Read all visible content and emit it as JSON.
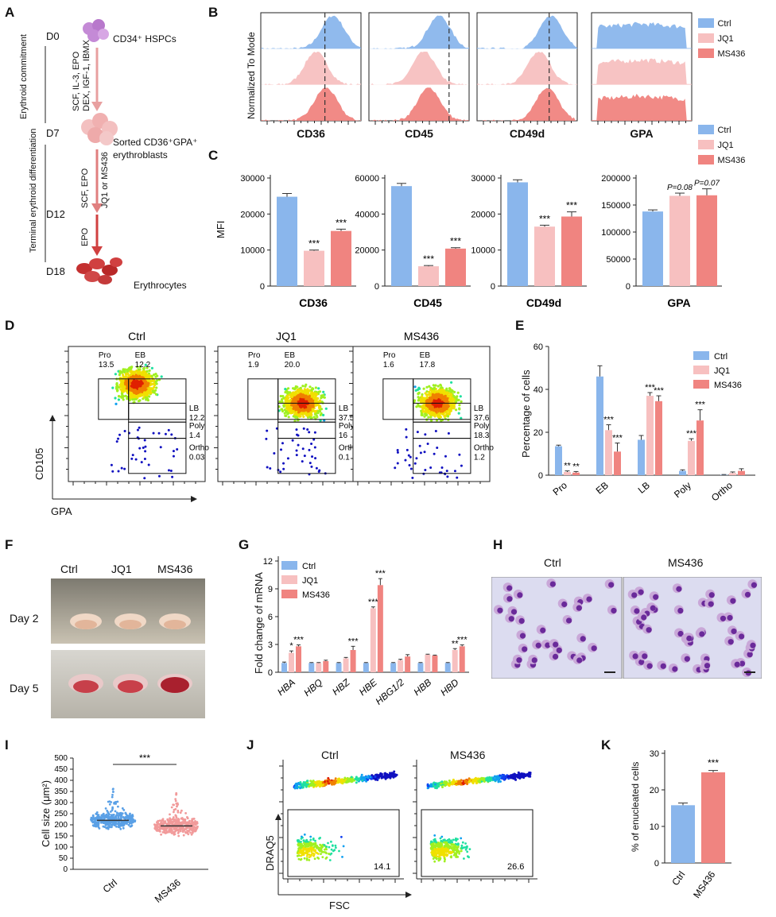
{
  "panels": {
    "A": "A",
    "B": "B",
    "C": "C",
    "D": "D",
    "E": "E",
    "F": "F",
    "G": "G",
    "H": "H",
    "I": "I",
    "J": "J",
    "K": "K"
  },
  "colors": {
    "ctrl": "#8ab6ec",
    "jq1": "#f7c0c0",
    "ms436": "#f08480",
    "arrow": "#e07f7f",
    "cell": "#d04040",
    "hspc": "#c48ad6"
  },
  "legend3": {
    "ctrl": "Ctrl",
    "jq1": "JQ1",
    "ms436": "MS436"
  },
  "panelA": {
    "days": [
      "D0",
      "D7",
      "D12",
      "D18"
    ],
    "stage1": "Erythroid commitment",
    "stage2": "Terminal erythroid differentiation",
    "cyt1": "SCF, IL-3, EPO",
    "cyt2": "DEX, IGF-1, IBMX",
    "cyt3": "SCF, EPO",
    "cyt4": "JQ1 or MS436",
    "cyt5": "EPO",
    "cell1": "CD34⁺ HSPCs",
    "cell2a": "Sorted CD36⁺GPA⁺",
    "cell2b": "erythroblasts",
    "cell3": "Erythrocytes"
  },
  "panelB": {
    "ylabel": "Normalized To Mode",
    "markers": [
      "CD36",
      "CD45",
      "CD49d",
      "GPA"
    ]
  },
  "panelC": {
    "ylabel": "MFI",
    "charts": [
      {
        "title": "CD36",
        "yticks": [
          "0",
          "10000",
          "20000",
          "30000"
        ],
        "ymax": 30000,
        "values": [
          24800,
          9800,
          15300
        ],
        "errs": [
          900,
          200,
          500
        ],
        "sig": [
          "",
          "***",
          "***"
        ]
      },
      {
        "title": "CD45",
        "yticks": [
          "0",
          "20000",
          "40000",
          "60000"
        ],
        "ymax": 60000,
        "values": [
          55500,
          11000,
          20800
        ],
        "errs": [
          1500,
          400,
          500
        ],
        "sig": [
          "",
          "***",
          "***"
        ]
      },
      {
        "title": "CD49d",
        "yticks": [
          "0",
          "10000",
          "20000",
          "30000"
        ],
        "ymax": 30000,
        "values": [
          28800,
          16500,
          19300
        ],
        "errs": [
          700,
          400,
          1300
        ],
        "sig": [
          "",
          "***",
          "***"
        ]
      },
      {
        "title": "GPA",
        "yticks": [
          "0",
          "50000",
          "100000",
          "150000",
          "200000"
        ],
        "ymax": 200000,
        "values": [
          138000,
          167000,
          168000
        ],
        "errs": [
          3000,
          5000,
          12000
        ],
        "sig": [
          "",
          "P=0.08",
          "P=0.07"
        ]
      }
    ]
  },
  "panelD": {
    "xlabel": "GPA",
    "ylabel": "CD105",
    "plots": [
      {
        "title": "Ctrl",
        "pro": "Pro",
        "pro_v": "13.5",
        "eb": "EB",
        "eb_v": "12.2",
        "lb_v": "12.2",
        "poly_v": "1.4",
        "ortho_v": "0.03"
      },
      {
        "title": "JQ1",
        "pro": "Pro",
        "pro_v": "1.9",
        "eb": "EB",
        "eb_v": "20.0",
        "lb_v": "37.5",
        "poly_v": "16",
        "ortho_v": "0.1"
      },
      {
        "title": "MS436",
        "pro": "Pro",
        "pro_v": "1.6",
        "eb": "EB",
        "eb_v": "17.8",
        "lb_v": "37.6",
        "poly_v": "18.3",
        "ortho_v": "1.2"
      }
    ],
    "lb": "LB",
    "poly": "Poly",
    "ortho": "Ortho"
  },
  "panelE": {
    "ylabel": "Percentage of cells",
    "yticks": [
      "0",
      "20",
      "40",
      "60"
    ],
    "ymax": 60,
    "categories": [
      "Pro",
      "EB",
      "LB",
      "Poly",
      "Ortho"
    ],
    "series": [
      {
        "name": "Ctrl",
        "values": [
          13.5,
          46,
          16.5,
          2,
          0.2
        ],
        "errs": [
          0.5,
          5,
          2,
          0.5,
          0.1
        ],
        "sig": [
          "",
          "",
          "",
          "",
          ""
        ]
      },
      {
        "name": "JQ1",
        "values": [
          1.5,
          21,
          37,
          16,
          1
        ],
        "errs": [
          0.5,
          2.5,
          1.5,
          1,
          0.5
        ],
        "sig": [
          "**",
          "***",
          "***",
          "***",
          ""
        ]
      },
      {
        "name": "MS436",
        "values": [
          1.2,
          11,
          34.5,
          25.5,
          2
        ],
        "errs": [
          0.5,
          4,
          2.5,
          5,
          1
        ],
        "sig": [
          "**",
          "***",
          "***",
          "***",
          ""
        ]
      }
    ]
  },
  "panelF": {
    "cols": [
      "Ctrl",
      "JQ1",
      "MS436"
    ],
    "rows": [
      "Day 2",
      "Day 5"
    ]
  },
  "panelG": {
    "ylabel": "Fold change of mRNA",
    "yticks": [
      "0",
      "3",
      "6",
      "9",
      "12"
    ],
    "ymax": 12,
    "categories": [
      "HBA",
      "HBQ",
      "HBZ",
      "HBE",
      "HBG1/2",
      "HBB",
      "HBD"
    ],
    "series": [
      {
        "name": "Ctrl",
        "values": [
          1,
          1,
          1,
          1,
          1,
          1,
          1
        ],
        "errs": [
          0.1,
          0.05,
          0.05,
          0.05,
          0.05,
          0.05,
          0.05
        ],
        "sig": [
          "",
          "",
          "",
          "",
          "",
          "",
          ""
        ]
      },
      {
        "name": "JQ1",
        "values": [
          2.1,
          1,
          1.5,
          6.9,
          1.3,
          1.9,
          2.4
        ],
        "errs": [
          0.2,
          0.05,
          0.1,
          0.15,
          0.1,
          0.05,
          0.15
        ],
        "sig": [
          "*",
          "",
          "",
          "***",
          "",
          "",
          "**"
        ]
      },
      {
        "name": "MS436",
        "values": [
          2.8,
          1.2,
          2.4,
          9.4,
          1.7,
          1.8,
          2.8
        ],
        "errs": [
          0.15,
          0.1,
          0.4,
          0.7,
          0.2,
          0.05,
          0.15
        ],
        "sig": [
          "***",
          "",
          "***",
          "***",
          "",
          "",
          "***"
        ]
      }
    ]
  },
  "panelH": {
    "titles": [
      "Ctrl",
      "MS436"
    ]
  },
  "panelI": {
    "ylabel": "Cell size (μm²)",
    "yticks": [
      "0",
      "50",
      "100",
      "150",
      "200",
      "250",
      "300",
      "350",
      "400",
      "450",
      "500"
    ],
    "groups": [
      "Ctrl",
      "MS436"
    ],
    "sig": "***",
    "medians": [
      220,
      195
    ]
  },
  "panelJ": {
    "xlabel": "FSC",
    "ylabel": "DRAQ5",
    "titles": [
      "Ctrl",
      "MS436"
    ],
    "gates": [
      "14.1",
      "26.6"
    ]
  },
  "panelK": {
    "ylabel": "% of  enucleated cells",
    "yticks": [
      "0",
      "10",
      "20",
      "30"
    ],
    "ymax": 30,
    "categories": [
      "Ctrl",
      "MS436"
    ],
    "values": [
      15.8,
      24.8
    ],
    "errs": [
      0.6,
      0.5
    ],
    "sig": "***"
  }
}
